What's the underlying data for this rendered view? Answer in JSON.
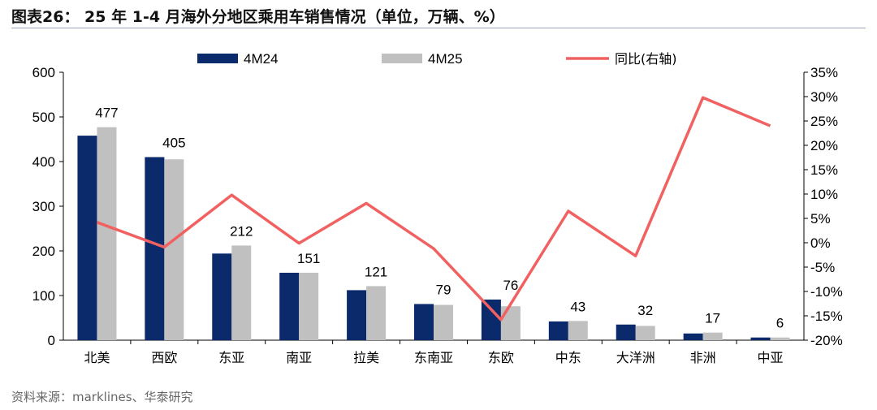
{
  "title": "图表26：  25 年 1-4 月海外分地区乘用车销售情况（单位，万辆、%）",
  "source": "资料来源：marklines、华泰研究",
  "colors": {
    "bar_2024": "#0b2a6b",
    "bar_2025": "#c0c0c0",
    "line_yoy": "#f26161"
  },
  "chart_data": {
    "type": "bar",
    "categories": [
      "北美",
      "西欧",
      "东亚",
      "南亚",
      "拉美",
      "东南亚",
      "东欧",
      "中东",
      "大洋洲",
      "非洲",
      "中亚"
    ],
    "series": [
      {
        "name": "4M24",
        "type": "bar",
        "axis": "left",
        "values": [
          458,
          410,
          194,
          151,
          112,
          81,
          91,
          42,
          35,
          15,
          6
        ]
      },
      {
        "name": "4M25",
        "type": "bar",
        "axis": "left",
        "values": [
          477,
          405,
          212,
          151,
          121,
          79,
          76,
          43,
          32,
          17,
          6
        ]
      },
      {
        "name": "同比(右轴)",
        "type": "line",
        "axis": "right",
        "values": [
          4.2,
          -0.9,
          9.8,
          -0.1,
          8.1,
          -1.2,
          -15.8,
          6.5,
          -2.7,
          29.8,
          24.0
        ]
      }
    ],
    "data_labels": [
      "477",
      "405",
      "212",
      "151",
      "121",
      "79",
      "76",
      "43",
      "32",
      "17",
      "6"
    ],
    "y_left": {
      "ylim": [
        0,
        600
      ],
      "ticks": [
        "0",
        "100",
        "200",
        "300",
        "400",
        "500",
        "600"
      ]
    },
    "y_right": {
      "ylim": [
        -20,
        35
      ],
      "ticks": [
        "-20%",
        "-15%",
        "-10%",
        "-5%",
        "0%",
        "5%",
        "10%",
        "15%",
        "20%",
        "25%",
        "30%",
        "35%"
      ]
    },
    "legend_position": "top"
  }
}
